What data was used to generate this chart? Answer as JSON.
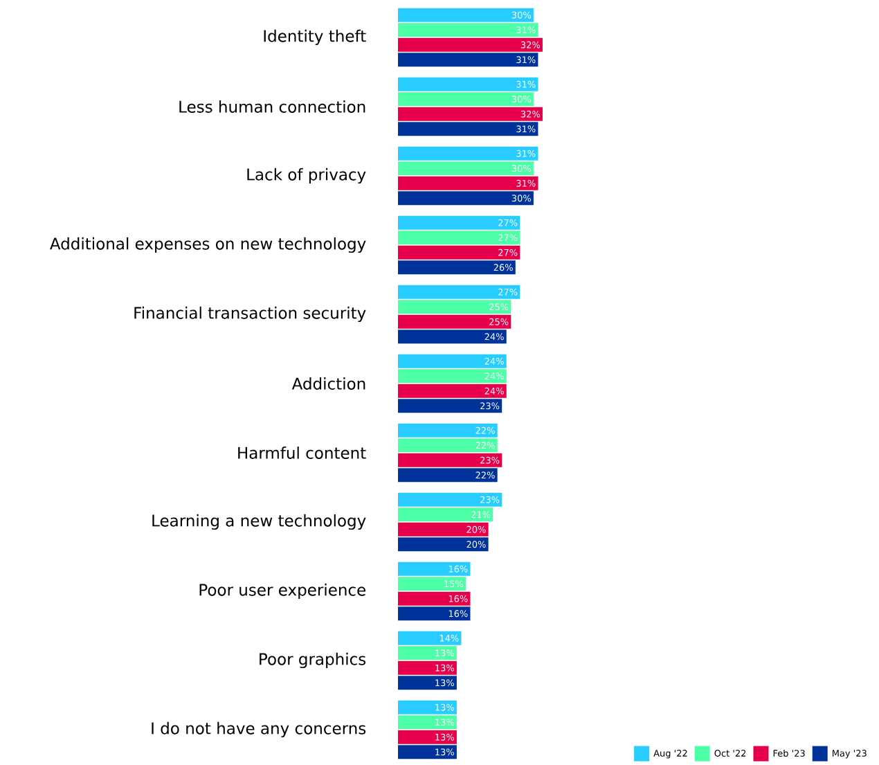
{
  "chart_data": {
    "type": "bar",
    "orientation": "horizontal",
    "categories": [
      "Identity theft",
      "Less human connection",
      "Lack of privacy",
      "Additional expenses on new technology",
      "Financial transaction security",
      "Addiction",
      "Harmful content",
      "Learning a new technology",
      "Poor user experience",
      "Poor graphics",
      "I do not have any concerns"
    ],
    "series": [
      {
        "name": "Aug '22",
        "color": "#29ccff",
        "values": [
          30,
          31,
          31,
          27,
          27,
          24,
          22,
          23,
          16,
          14,
          13
        ],
        "value_labels": [
          "30%",
          "31%",
          "31%",
          "27%",
          "27%",
          "24%",
          "22%",
          "23%",
          "16%",
          "14%",
          "13%"
        ]
      },
      {
        "name": "Oct '22",
        "color": "#4dffa6",
        "values": [
          31,
          30,
          30,
          27,
          25,
          24,
          22,
          21,
          15,
          13,
          13
        ],
        "value_labels": [
          "31%",
          "30%",
          "30%",
          "27%",
          "25%",
          "24%",
          "22%",
          "21%",
          "15%",
          "13%",
          "13%"
        ]
      },
      {
        "name": "Feb '23",
        "color": "#e6004c",
        "values": [
          32,
          32,
          31,
          27,
          25,
          24,
          23,
          20,
          16,
          13,
          13
        ],
        "value_labels": [
          "32%",
          "32%",
          "31%",
          "27%",
          "25%",
          "24%",
          "23%",
          "20%",
          "16%",
          "13%",
          "13%"
        ]
      },
      {
        "name": "May '23",
        "color": "#003399",
        "values": [
          31,
          31,
          30,
          26,
          24,
          23,
          22,
          20,
          16,
          13,
          13
        ],
        "value_labels": [
          "31%",
          "31%",
          "30%",
          "26%",
          "24%",
          "23%",
          "22%",
          "20%",
          "16%",
          "13%",
          "13%"
        ]
      }
    ],
    "tick_labels": "y",
    "legend": "bottom right"
  }
}
